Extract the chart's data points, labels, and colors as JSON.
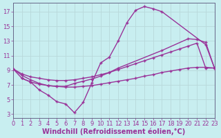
{
  "background_color": "#c8eef0",
  "grid_color": "#b8d8da",
  "line_color": "#993399",
  "marker": "+",
  "xlabel": "Windchill (Refroidissement éolien,°C)",
  "xlabel_fontsize": 7,
  "xticks": [
    0,
    1,
    2,
    3,
    4,
    5,
    6,
    7,
    8,
    9,
    10,
    11,
    12,
    13,
    14,
    15,
    16,
    17,
    18,
    19,
    20,
    21,
    22,
    23
  ],
  "yticks": [
    3,
    5,
    7,
    9,
    11,
    13,
    15,
    17
  ],
  "xlim": [
    0,
    23
  ],
  "ylim": [
    2.5,
    18.2
  ],
  "curve1_x": [
    0,
    1,
    2,
    3,
    4,
    5,
    6,
    7,
    8,
    9,
    10,
    11,
    12,
    13,
    14,
    15,
    16,
    17,
    22,
    23
  ],
  "curve1_y": [
    9.2,
    7.9,
    7.4,
    6.3,
    5.6,
    4.7,
    4.4,
    3.2,
    4.6,
    7.3,
    10.0,
    10.8,
    13.0,
    15.5,
    17.2,
    17.7,
    17.4,
    17.0,
    12.5,
    9.3
  ],
  "curve2_x": [
    0,
    1,
    2,
    3,
    4,
    5,
    6,
    7,
    8,
    9,
    10,
    11,
    12,
    17,
    20,
    21,
    22,
    23
  ],
  "curve2_y": [
    9.2,
    8.3,
    7.7,
    7.2,
    6.9,
    6.8,
    6.8,
    7.2,
    7.5,
    7.8,
    8.2,
    8.7,
    9.3,
    11.7,
    13.3,
    13.2,
    12.8,
    9.3
  ],
  "curve3_x": [
    0,
    1,
    2,
    3,
    4,
    5,
    6,
    7,
    8,
    9,
    10,
    11,
    12,
    13,
    14,
    15,
    16,
    17,
    18,
    19,
    20,
    21,
    22,
    23
  ],
  "curve3_y": [
    9.2,
    8.5,
    8.1,
    7.9,
    7.7,
    7.6,
    7.6,
    7.7,
    7.9,
    8.1,
    8.4,
    8.7,
    9.1,
    9.5,
    9.9,
    10.3,
    10.7,
    11.1,
    11.5,
    11.9,
    12.3,
    12.7,
    9.3,
    9.3
  ],
  "curve4_x": [
    1,
    2,
    3,
    4,
    5,
    6,
    7,
    8,
    9,
    10,
    11,
    12,
    13,
    14,
    15,
    16,
    17,
    18,
    19,
    20,
    21,
    22,
    23
  ],
  "curve4_y": [
    7.9,
    7.4,
    7.1,
    6.9,
    6.8,
    6.7,
    6.7,
    6.8,
    6.9,
    7.1,
    7.3,
    7.5,
    7.7,
    7.9,
    8.2,
    8.4,
    8.7,
    8.9,
    9.1,
    9.3,
    9.4,
    9.4,
    9.3
  ],
  "tick_fontsize": 6,
  "lw": 1.0,
  "markersize": 3.5,
  "markeredgewidth": 1.0
}
